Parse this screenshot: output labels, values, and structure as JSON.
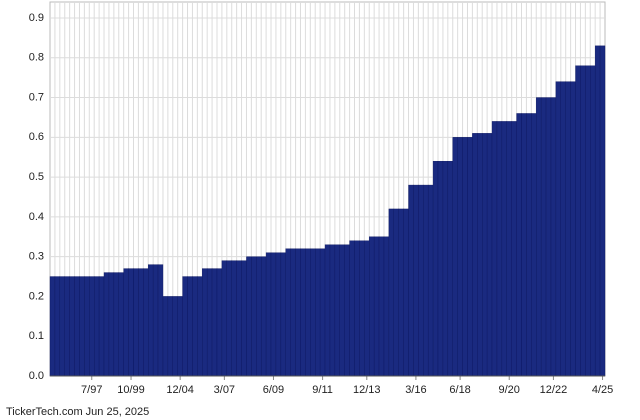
{
  "chart_data": {
    "type": "bar",
    "footer": "TickerTech.com  Jun 25, 2025",
    "color": "#1a2a80",
    "grid": true,
    "ylim": [
      0,
      0.9
    ],
    "yticks": [
      {
        "value": 0,
        "label": "0.0"
      },
      0.1,
      0.2,
      0.3,
      0.4,
      0.5,
      0.6,
      0.7,
      0.8,
      0.9
    ],
    "categories": [
      null,
      null,
      null,
      null,
      null,
      null,
      null,
      null,
      "7/97",
      null,
      null,
      null,
      null,
      null,
      null,
      null,
      "10/99",
      null,
      null,
      null,
      null,
      null,
      null,
      null,
      null,
      null,
      "12/04",
      null,
      null,
      null,
      null,
      null,
      null,
      null,
      null,
      "3/07",
      null,
      null,
      null,
      null,
      null,
      null,
      null,
      null,
      null,
      "6/09",
      null,
      null,
      null,
      null,
      null,
      null,
      null,
      null,
      null,
      "9/11",
      null,
      null,
      null,
      null,
      null,
      null,
      null,
      null,
      "12/13",
      null,
      null,
      null,
      null,
      null,
      null,
      null,
      null,
      null,
      "3/16",
      null,
      null,
      null,
      null,
      null,
      null,
      null,
      null,
      "6/18",
      null,
      null,
      null,
      null,
      null,
      null,
      null,
      null,
      null,
      "9/20",
      null,
      null,
      null,
      null,
      null,
      null,
      null,
      null,
      "12/22",
      null,
      null,
      null,
      null,
      null,
      null,
      null,
      null,
      null,
      "4/25"
    ],
    "values": [
      0.25,
      0.25,
      0.25,
      0.25,
      0.25,
      0.25,
      0.25,
      0.25,
      0.25,
      0.25,
      0.25,
      0.26,
      0.26,
      0.26,
      0.26,
      0.27,
      0.27,
      0.27,
      0.27,
      0.27,
      0.28,
      0.28,
      0.28,
      0.2,
      0.2,
      0.2,
      0.2,
      0.25,
      0.25,
      0.25,
      0.25,
      0.27,
      0.27,
      0.27,
      0.27,
      0.29,
      0.29,
      0.29,
      0.29,
      0.29,
      0.3,
      0.3,
      0.3,
      0.3,
      0.31,
      0.31,
      0.31,
      0.31,
      0.32,
      0.32,
      0.32,
      0.32,
      0.32,
      0.32,
      0.32,
      0.32,
      0.33,
      0.33,
      0.33,
      0.33,
      0.33,
      0.34,
      0.34,
      0.34,
      0.34,
      0.35,
      0.35,
      0.35,
      0.35,
      0.42,
      0.42,
      0.42,
      0.42,
      0.48,
      0.48,
      0.48,
      0.48,
      0.48,
      0.54,
      0.54,
      0.54,
      0.54,
      0.6,
      0.6,
      0.6,
      0.6,
      0.61,
      0.61,
      0.61,
      0.61,
      0.64,
      0.64,
      0.64,
      0.64,
      0.64,
      0.66,
      0.66,
      0.66,
      0.66,
      0.7,
      0.7,
      0.7,
      0.7,
      0.74,
      0.74,
      0.74,
      0.74,
      0.78,
      0.78,
      0.78,
      0.78,
      0.83,
      0.83
    ]
  }
}
